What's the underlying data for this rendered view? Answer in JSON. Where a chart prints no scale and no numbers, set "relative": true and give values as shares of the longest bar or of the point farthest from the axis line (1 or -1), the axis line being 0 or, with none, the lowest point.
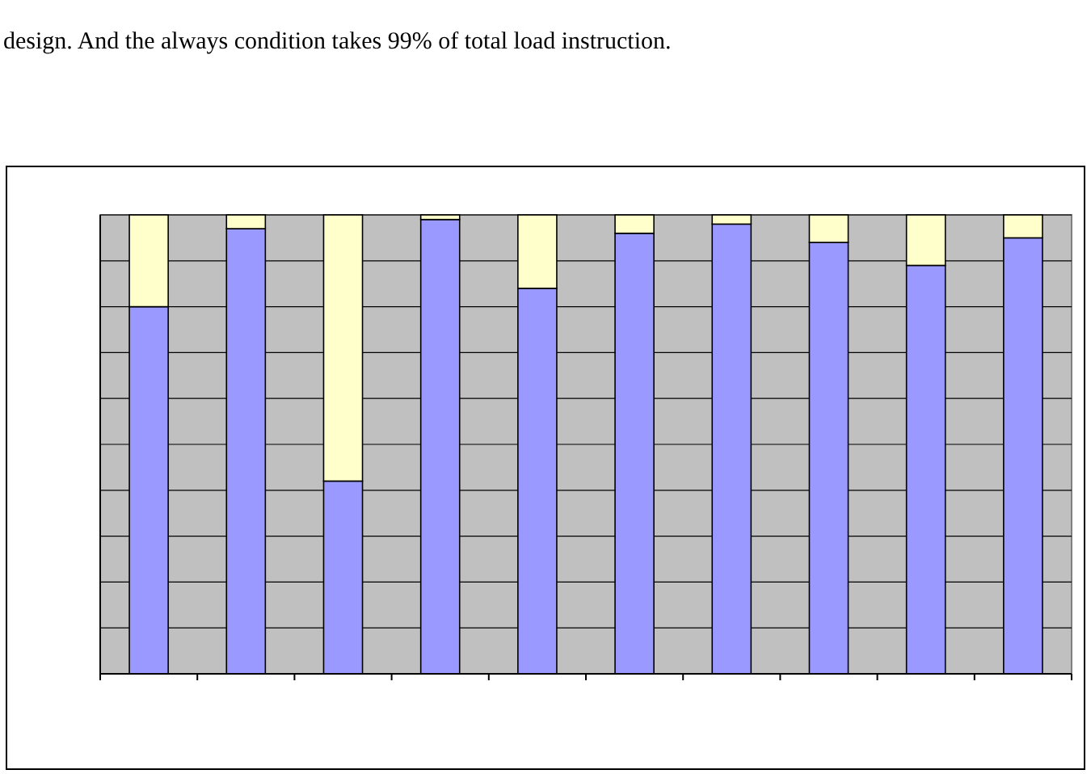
{
  "chart_data": {
    "type": "bar",
    "stacked": true,
    "relative": true,
    "grid": "y",
    "annotations": [
      "design. And the always condition takes 99% of total load instruction."
    ],
    "categories": [
      null,
      null,
      null,
      null,
      null,
      null,
      null,
      null,
      null,
      null
    ],
    "series": [
      {
        "color": "#9999ff",
        "values": [
          0.8,
          0.97,
          0.42,
          0.99,
          0.84,
          0.96,
          0.98,
          0.94,
          0.89,
          0.95
        ]
      },
      {
        "color": "#ffffcc",
        "values": [
          0.2,
          0.03,
          0.58,
          0.01,
          0.16,
          0.04,
          0.02,
          0.06,
          0.11,
          0.05
        ]
      }
    ]
  }
}
